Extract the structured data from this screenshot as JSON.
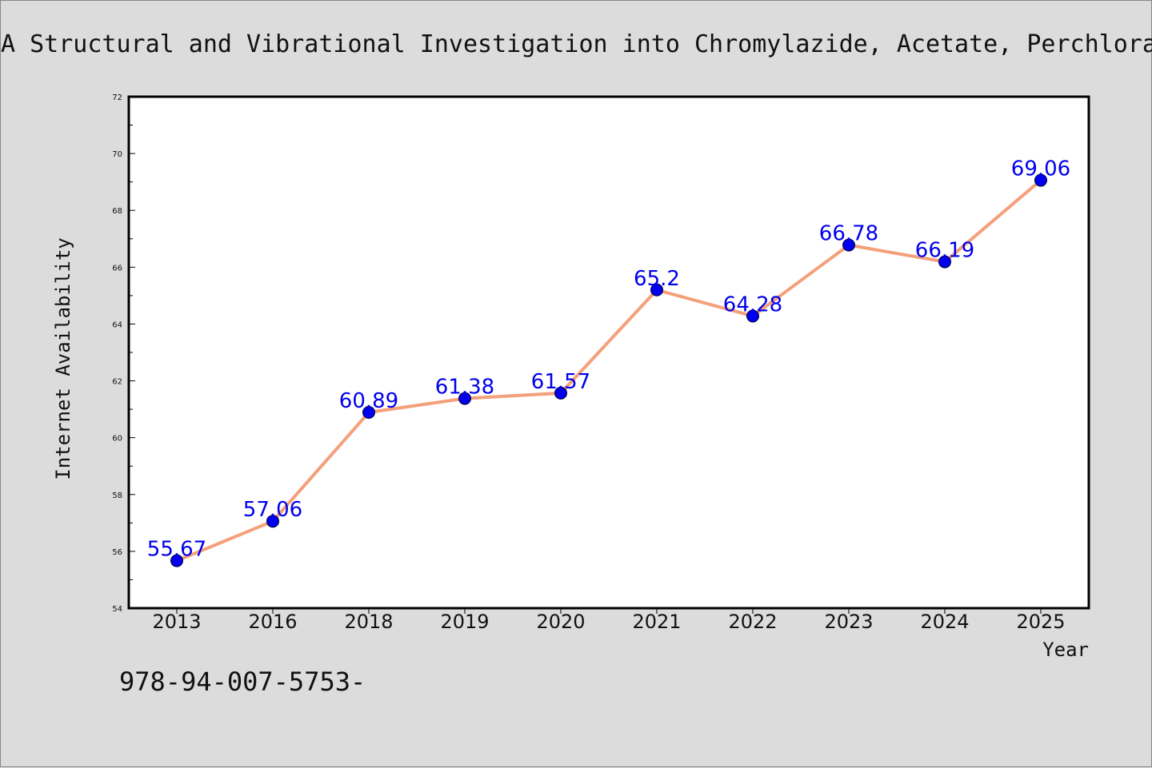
{
  "chart_data": {
    "type": "line",
    "title": "A Structural and Vibrational Investigation into Chromylazide, Acetate, Perchlora",
    "xlabel": "Year",
    "ylabel": "Internet Availability",
    "categories": [
      "2013",
      "2016",
      "2018",
      "2019",
      "2020",
      "2021",
      "2022",
      "2023",
      "2024",
      "2025"
    ],
    "series": [
      {
        "values": [
          55.67,
          57.06,
          60.89,
          61.38,
          61.57,
          65.2,
          64.28,
          66.78,
          66.19,
          69.06
        ],
        "labels": [
          "55.67",
          "57.06",
          "60.89",
          "61.38",
          "61.57",
          "65.2",
          "64.28",
          "66.78",
          "66.19",
          "69.06"
        ],
        "line_color": "#f4a07a",
        "marker_color": "#0000ee",
        "label_color": "#0000ee"
      }
    ],
    "ylim": [
      54,
      72
    ],
    "yticks": [
      "54",
      "56",
      "58",
      "60",
      "62",
      "64",
      "66",
      "68",
      "70",
      "72"
    ],
    "grid": false,
    "legend": "none",
    "annotation": "978-94-007-5753-"
  },
  "colors": {
    "background": "#dcdcdc",
    "plot_background": "#ffffff",
    "text": "#111111"
  }
}
